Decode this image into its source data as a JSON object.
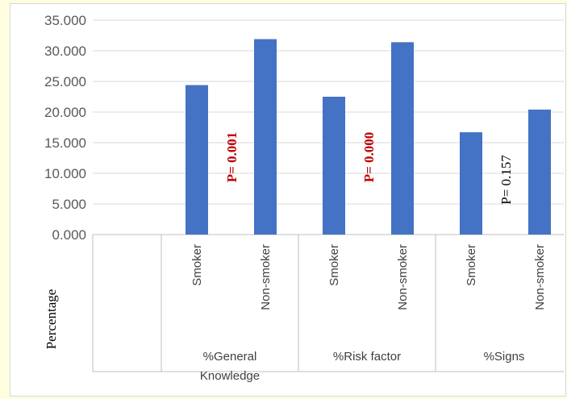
{
  "chart_data": {
    "type": "bar",
    "ylabel": "Percentage",
    "ylim": [
      0,
      35
    ],
    "yticks": [
      "0.000",
      "5.000",
      "10.000",
      "15.000",
      "20.000",
      "25.000",
      "30.000",
      "35.000"
    ],
    "grid": true,
    "legend": "none",
    "bar_color": "#4472c4",
    "groups": [
      {
        "label_lines": [
          "%General",
          "Knowledge"
        ],
        "categories": [
          "Smoker",
          "Non-smoker"
        ],
        "values": [
          24.4,
          31.9
        ],
        "p_value": "P= 0.001",
        "p_color": "#c00000",
        "p_bold": true
      },
      {
        "label_lines": [
          "%Risk factor"
        ],
        "categories": [
          "Smoker",
          "Non-smoker"
        ],
        "values": [
          22.5,
          31.4
        ],
        "p_value": "P= 0.000",
        "p_color": "#c00000",
        "p_bold": true
      },
      {
        "label_lines": [
          "%Signs"
        ],
        "categories": [
          "Smoker",
          "Non-smoker"
        ],
        "values": [
          16.7,
          20.4
        ],
        "p_value": "P= 0.157",
        "p_color": "#000000",
        "p_bold": false
      }
    ]
  }
}
